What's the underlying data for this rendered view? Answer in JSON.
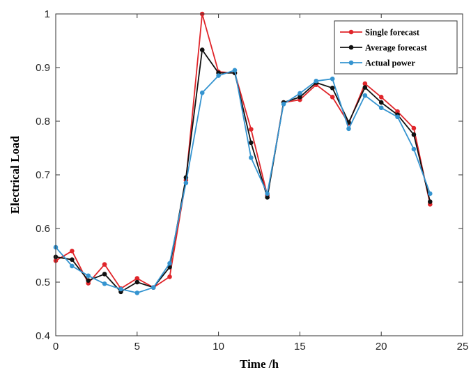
{
  "chart_data": {
    "type": "line",
    "title": "",
    "xlabel": "Time /h",
    "ylabel": "Electrical Load",
    "xlim": [
      0,
      25
    ],
    "ylim": [
      0.4,
      1.0
    ],
    "xticks": [
      "0",
      "5",
      "10",
      "15",
      "20",
      "25"
    ],
    "yticks": [
      "0.4",
      "0.5",
      "0.6",
      "0.7",
      "0.8",
      "0.9",
      "1"
    ],
    "grid": false,
    "legend_position": "top-right",
    "x": [
      0,
      1,
      2,
      3,
      4,
      5,
      6,
      7,
      8,
      9,
      10,
      11,
      12,
      13,
      14,
      15,
      16,
      17,
      18,
      19,
      20,
      21,
      22,
      23
    ],
    "series": [
      {
        "name": "Single forecast",
        "color": "#e0252a",
        "values": [
          0.54,
          0.558,
          0.498,
          0.533,
          0.488,
          0.507,
          0.49,
          0.51,
          0.69,
          1.0,
          0.892,
          0.89,
          0.785,
          0.662,
          0.835,
          0.84,
          0.868,
          0.845,
          0.796,
          0.87,
          0.845,
          0.818,
          0.787,
          0.645
        ]
      },
      {
        "name": "Average forecast",
        "color": "#111111",
        "values": [
          0.547,
          0.542,
          0.503,
          0.515,
          0.482,
          0.5,
          0.49,
          0.528,
          0.695,
          0.933,
          0.89,
          0.89,
          0.76,
          0.658,
          0.835,
          0.845,
          0.872,
          0.862,
          0.798,
          0.863,
          0.835,
          0.812,
          0.775,
          0.65
        ]
      },
      {
        "name": "Actual power",
        "color": "#3594d0",
        "values": [
          0.565,
          0.53,
          0.512,
          0.497,
          0.487,
          0.48,
          0.49,
          0.535,
          0.685,
          0.853,
          0.885,
          0.895,
          0.732,
          0.665,
          0.832,
          0.852,
          0.875,
          0.879,
          0.786,
          0.848,
          0.825,
          0.808,
          0.748,
          0.665
        ]
      }
    ]
  }
}
